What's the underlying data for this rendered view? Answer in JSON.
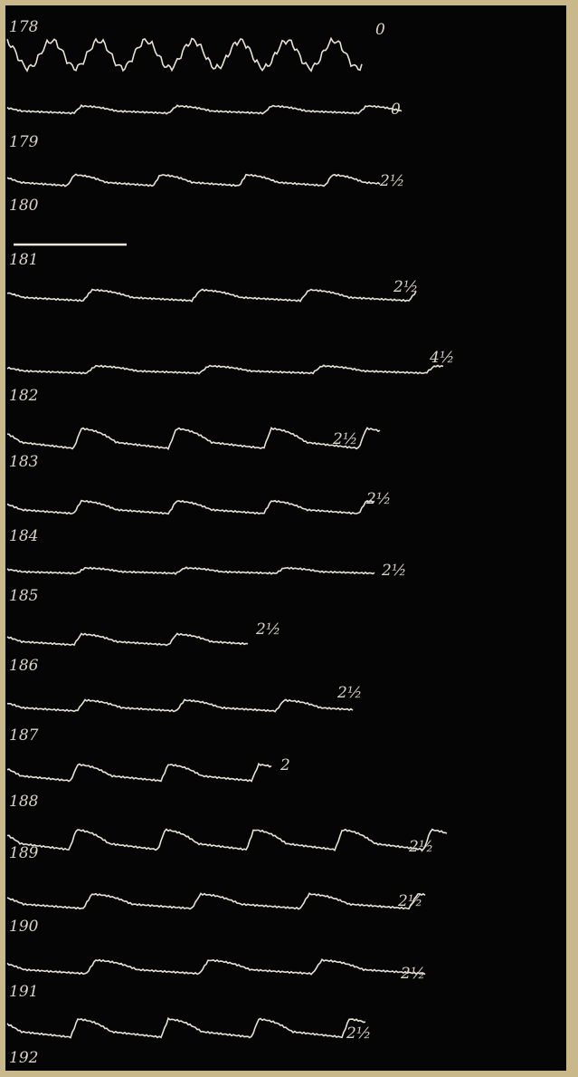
{
  "tracings": [
    {
      "number": "178",
      "label": "0"
    },
    {
      "number": "179",
      "label": "0"
    },
    {
      "number": "180",
      "label": "2½"
    },
    {
      "number": "181",
      "label": "2½"
    },
    {
      "number": "182",
      "label": "4½"
    },
    {
      "number": "183",
      "label": "2½"
    },
    {
      "number": "184",
      "label": "2½"
    },
    {
      "number": "185",
      "label": "2½"
    },
    {
      "number": "186",
      "label": "2½"
    },
    {
      "number": "187",
      "label": "2½"
    },
    {
      "number": "188",
      "label": "2"
    },
    {
      "number": "189",
      "label": "2½"
    },
    {
      "number": "190",
      "label": "2½"
    },
    {
      "number": "191",
      "label": "2½"
    },
    {
      "number": "192",
      "label": "2½"
    }
  ]
}
